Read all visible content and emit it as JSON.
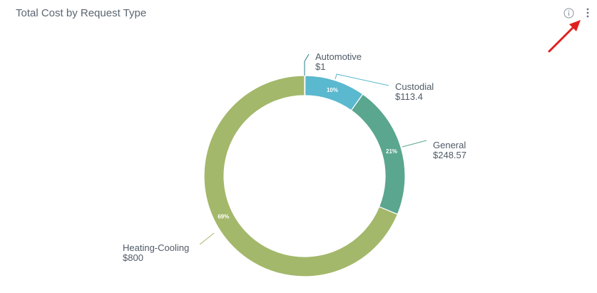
{
  "header": {
    "title": "Total Cost by Request Type",
    "info_icon": "info-circle-icon",
    "menu_icon": "vertical-ellipsis-icon"
  },
  "colors": {
    "Automotive": "#2b7e8f",
    "Custodial": "#5ab8cf",
    "General": "#5aa68f",
    "Heating-Cooling": "#a3b86a",
    "arrow": "#e02020"
  },
  "chart_data": {
    "type": "pie",
    "title": "Total Cost by Request Type",
    "donut": true,
    "categories": [
      "Automotive",
      "Custodial",
      "General",
      "Heating-Cooling"
    ],
    "values": [
      1,
      113.4,
      248.57,
      800
    ],
    "value_labels": [
      "$1",
      "$113.4",
      "$248.57",
      "$800"
    ],
    "percent_labels": [
      "",
      "10%",
      "21%",
      "69%"
    ]
  }
}
